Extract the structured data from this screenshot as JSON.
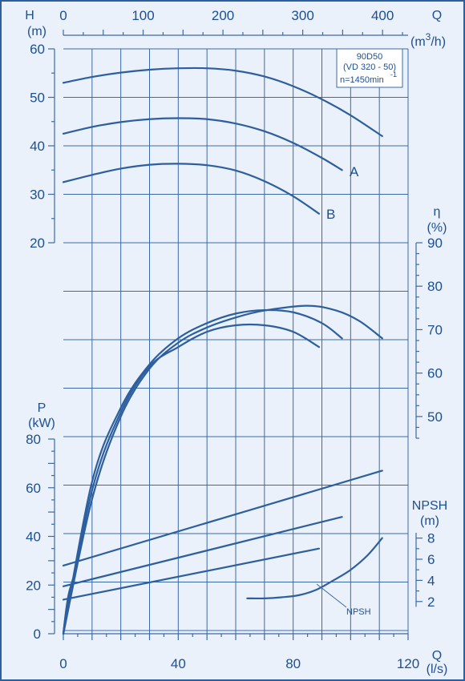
{
  "chart_data": {
    "type": "line",
    "info_box": [
      "90D50",
      "(VD 320 - 50)",
      "n=1450min",
      "-1"
    ],
    "axes": {
      "q_ls": {
        "label_1": "Q",
        "label_2": "(l/s)",
        "ticks": [
          "0",
          "40",
          "80",
          "120"
        ],
        "range": [
          0,
          120
        ]
      },
      "q_m3h": {
        "label_1": "Q",
        "label_2a": "(m",
        "label_2b": "3",
        "label_2c": "/h)",
        "ticks": [
          "0",
          "100",
          "200",
          "300",
          "400"
        ],
        "range": [
          0,
          432
        ]
      },
      "head": {
        "label_1": "H",
        "label_2": "(m)",
        "ticks": [
          "20",
          "30",
          "40",
          "50",
          "60"
        ],
        "range": [
          20,
          60
        ]
      },
      "efficiency": {
        "label_1": "η",
        "label_2": "(%)",
        "ticks": [
          "50",
          "60",
          "70",
          "80",
          "90"
        ],
        "range": [
          45,
          90
        ]
      },
      "power": {
        "label_1": "P",
        "label_2": "(kW)",
        "ticks": [
          "0",
          "20",
          "40",
          "60",
          "80"
        ],
        "range": [
          0,
          80
        ]
      },
      "npsh": {
        "label_1": "NPSH",
        "label_2": "(m)",
        "ticks": [
          "2",
          "4",
          "6",
          "8"
        ],
        "range": [
          1,
          8.5
        ]
      }
    },
    "curve_labels": {
      "a": "A",
      "b": "B",
      "npsh": "NPSH"
    },
    "head_curves": [
      {
        "x": [
          0,
          10,
          20,
          30,
          40,
          50,
          60,
          70,
          80,
          90,
          100,
          111
        ],
        "y": [
          53,
          54.2,
          55.1,
          55.7,
          56,
          56,
          55.5,
          54.3,
          52.3,
          49.6,
          46.3,
          42
        ]
      },
      {
        "name": "A",
        "x": [
          0,
          10,
          20,
          30,
          40,
          50,
          60,
          70,
          80,
          90,
          97
        ],
        "y": [
          42.5,
          43.9,
          44.9,
          45.5,
          45.7,
          45.5,
          44.6,
          43,
          40.6,
          37.5,
          35
        ]
      },
      {
        "name": "B",
        "x": [
          0,
          10,
          20,
          30,
          40,
          50,
          60,
          70,
          80,
          89
        ],
        "y": [
          32.5,
          34,
          35.3,
          36.1,
          36.3,
          36,
          34.9,
          32.7,
          29.6,
          26
        ]
      }
    ],
    "efficiency_curves": [
      {
        "x": [
          0,
          10,
          20,
          30,
          40,
          50,
          60,
          70,
          85,
          95,
          103,
          111
        ],
        "y": [
          0,
          31,
          50,
          61,
          67,
          70.5,
          72.8,
          74.4,
          75.5,
          74.4,
          72,
          68
        ]
      },
      {
        "x": [
          0,
          10,
          20,
          30,
          40,
          50,
          60,
          70,
          80,
          90,
          97
        ],
        "y": [
          0,
          35,
          52,
          62,
          68,
          71.5,
          73.7,
          74.5,
          74,
          71.5,
          68
        ]
      },
      {
        "x": [
          0,
          10,
          20,
          30,
          40,
          50,
          60,
          70,
          80,
          89
        ],
        "y": [
          0,
          33,
          51,
          61.5,
          66,
          69.5,
          71,
          71,
          69.5,
          66
        ]
      }
    ],
    "power_curves": [
      {
        "x": [
          0,
          111
        ],
        "y": [
          28,
          67
        ]
      },
      {
        "x": [
          0,
          97
        ],
        "y": [
          19.5,
          48
        ]
      },
      {
        "x": [
          0,
          89
        ],
        "y": [
          14,
          35
        ]
      }
    ],
    "power_start_segments": [
      {
        "x": [
          0,
          1,
          2,
          4
        ],
        "y": [
          0,
          10,
          17,
          25
        ]
      },
      {
        "x": [
          0,
          1,
          2.5
        ],
        "y": [
          0,
          9,
          18
        ]
      },
      {
        "x": [
          0,
          0.8,
          1.8
        ],
        "y": [
          0,
          7,
          13.5
        ]
      }
    ],
    "npsh_curve": {
      "x": [
        64,
        70,
        76,
        82,
        88,
        94,
        100,
        106,
        111
      ],
      "y": [
        2.3,
        2.3,
        2.4,
        2.6,
        3.1,
        4,
        5,
        6.4,
        8
      ]
    }
  }
}
